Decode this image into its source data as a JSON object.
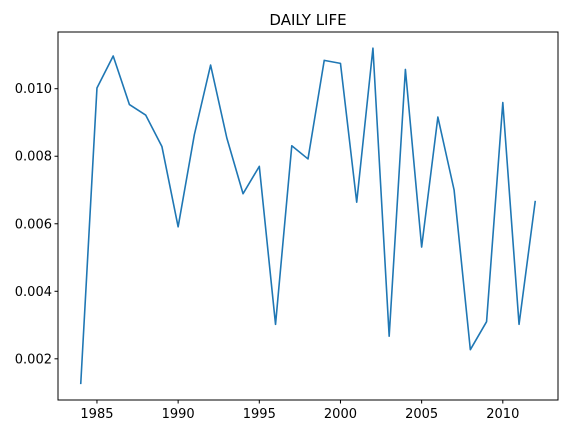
{
  "chart_data": {
    "type": "line",
    "title": "DAILY LIFE",
    "xlabel": "",
    "ylabel": "",
    "xlim": [
      1982.6,
      2013.4
    ],
    "ylim": [
      0.00078,
      0.01168
    ],
    "grid": false,
    "x_ticks": [
      1985,
      1990,
      1995,
      2000,
      2005,
      2010
    ],
    "x_tick_labels": [
      "1985",
      "1990",
      "1995",
      "2000",
      "2005",
      "2010"
    ],
    "y_ticks": [
      0.002,
      0.004,
      0.006,
      0.008,
      0.01
    ],
    "y_tick_labels": [
      "0.002",
      "0.004",
      "0.006",
      "0.008",
      "0.010"
    ],
    "series": [
      {
        "color": "#1f77b4",
        "x": [
          1984,
          1985,
          1986,
          1987,
          1988,
          1989,
          1990,
          1991,
          1992,
          1993,
          1994,
          1995,
          1996,
          1997,
          1998,
          1999,
          2000,
          2001,
          2002,
          2003,
          2004,
          2005,
          2006,
          2007,
          2008,
          2009,
          2010,
          2011,
          2012
        ],
        "values": [
          0.00125,
          0.01002,
          0.01097,
          0.00953,
          0.00922,
          0.00829,
          0.00591,
          0.00864,
          0.0107,
          0.00854,
          0.00689,
          0.0077,
          0.00302,
          0.00831,
          0.00792,
          0.01084,
          0.01075,
          0.00664,
          0.0112,
          0.00267,
          0.01057,
          0.00531,
          0.00916,
          0.007,
          0.00227,
          0.0031,
          0.00959,
          0.00302,
          0.00668
        ]
      }
    ]
  }
}
